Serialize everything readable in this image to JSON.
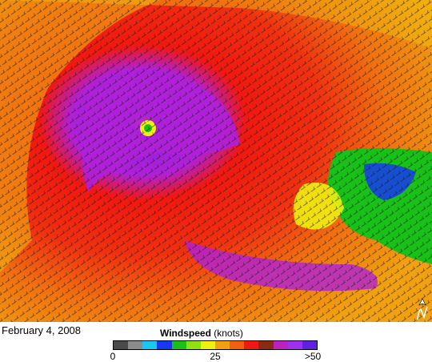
{
  "date_label": "February 4, 2008",
  "legend": {
    "title_bold": "Windspeed",
    "title_units": "(knots)",
    "ticks": [
      "0",
      "25",
      ">50"
    ],
    "tick_values": [
      0,
      25,
      50
    ],
    "min": 0,
    "max": 50,
    "colors": [
      "#4a4a4a",
      "#8c8c8c",
      "#18c8f0",
      "#1838f0",
      "#18c018",
      "#90e010",
      "#f0f010",
      "#f0a010",
      "#f06010",
      "#f01810",
      "#8a2a14",
      "#c020c0",
      "#a030f0",
      "#6020e0"
    ]
  },
  "north_arrow_icon": "north-arrow-icon",
  "storm": {
    "eye_label": "",
    "colors": {
      "calm": "#18c018",
      "light": "#f0f010",
      "moderate": "#f0a010",
      "strong": "#f01810",
      "brown": "#8a2a14",
      "severe": "#c020c0",
      "extreme": "#7020e0",
      "low_blue": "#1838f0"
    }
  }
}
